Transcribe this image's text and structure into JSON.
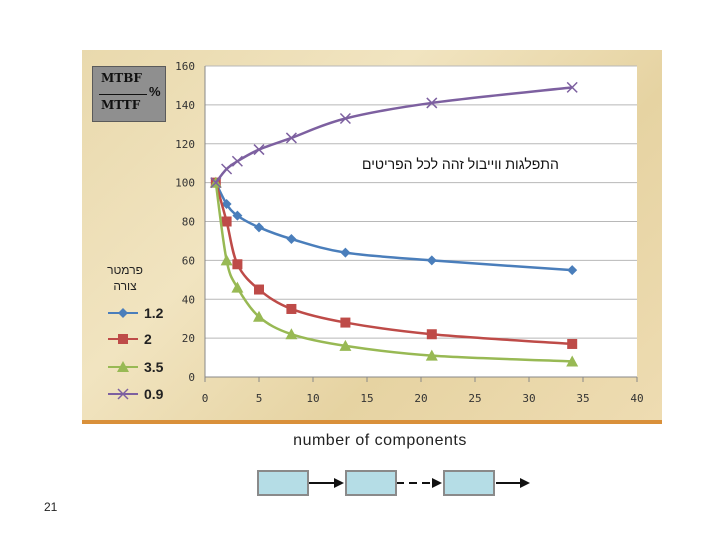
{
  "slide": {
    "page_number": "21",
    "xaxis_caption": "number of components",
    "formula": {
      "numerator": "MTBF",
      "denominator": "MTTF",
      "unit": "%"
    },
    "legend_title": "פרמטר צורה"
  },
  "colors": {
    "blue": "#4a7ebb",
    "red": "#be4b48",
    "green": "#98b954",
    "purple": "#7d60a0",
    "block_fill": "#b5dde6"
  },
  "chart_data": {
    "type": "line",
    "title": "התפלגות ווייבול זהה לכל הפריטים",
    "xlabel": "number of components",
    "ylabel": "MTBF/MTTF %",
    "xlim": [
      0,
      40
    ],
    "ylim": [
      0,
      160
    ],
    "xticks": [
      "0",
      "5",
      "10",
      "15",
      "20",
      "25",
      "30",
      "35",
      "40"
    ],
    "yticks": [
      "0",
      "20",
      "40",
      "60",
      "80",
      "100",
      "120",
      "140",
      "160"
    ],
    "grid": "horizontal",
    "legend": "left",
    "series": [
      {
        "name": "1.2",
        "color": "#4a7ebb",
        "marker": "diamond",
        "x": [
          1,
          2,
          3,
          5,
          8,
          13,
          21,
          34
        ],
        "y": [
          100,
          89,
          83,
          77,
          71,
          64,
          60,
          55
        ]
      },
      {
        "name": "2",
        "color": "#be4b48",
        "marker": "square",
        "x": [
          1,
          2,
          3,
          5,
          8,
          13,
          21,
          34
        ],
        "y": [
          100,
          80,
          58,
          45,
          35,
          28,
          22,
          17
        ]
      },
      {
        "name": "3.5",
        "color": "#98b954",
        "marker": "triangle",
        "x": [
          1,
          2,
          3,
          5,
          8,
          13,
          21,
          34
        ],
        "y": [
          100,
          60,
          46,
          31,
          22,
          16,
          11,
          8
        ]
      },
      {
        "name": "0.9",
        "color": "#7d60a0",
        "marker": "x",
        "x": [
          1,
          2,
          3,
          5,
          8,
          13,
          21,
          34
        ],
        "y": [
          100,
          107,
          111,
          117,
          123,
          133,
          141,
          149
        ]
      }
    ]
  }
}
